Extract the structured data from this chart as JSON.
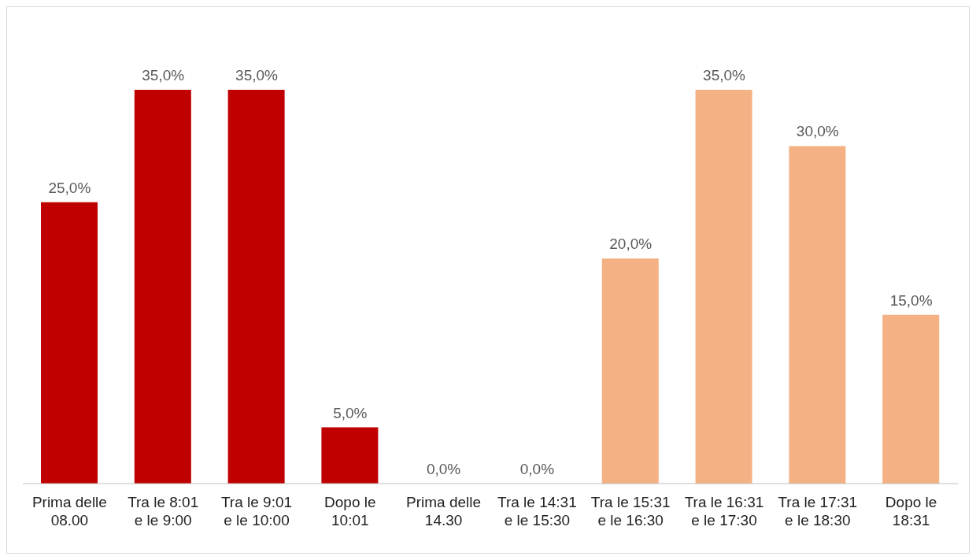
{
  "chart_data": {
    "type": "bar",
    "categories": [
      "Prima delle\n08.00",
      "Tra le 8:01\ne le 9:00",
      "Tra le 9:01\ne le 10:00",
      "Dopo le\n10:01",
      "Prima delle\n14.30",
      "Tra le 14:31\ne le 15:30",
      "Tra le 15:31\ne le 16:30",
      "Tra le 16:31\ne le 17:30",
      "Tra le 17:31\ne le 18:30",
      "Dopo le\n18:31"
    ],
    "values": [
      25,
      35,
      35,
      5,
      0,
      0,
      20,
      35,
      30,
      15
    ],
    "colors": [
      "#c00000",
      "#c00000",
      "#c00000",
      "#c00000",
      "#c00000",
      "#c00000",
      "#f4b183",
      "#f4b183",
      "#f4b183",
      "#f4b183"
    ],
    "value_labels": [
      "25,0%",
      "35,0%",
      "35,0%",
      "5,0%",
      "0,0%",
      "0,0%",
      "20,0%",
      "35,0%",
      "30,0%",
      "15,0%"
    ],
    "grid": false,
    "legend": false
  }
}
